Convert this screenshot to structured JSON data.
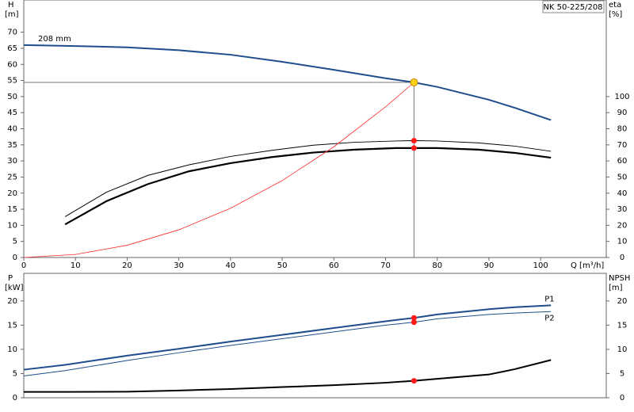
{
  "chart_data": [
    {
      "type": "line",
      "title": "NK 50-225/208",
      "y_label": "H",
      "y_unit": "[m]",
      "y2_label": "eta",
      "y2_unit": "[%]",
      "x_label": "Q [m³/h]",
      "xlim": [
        0,
        112.7
      ],
      "xticks": [
        0,
        10,
        20,
        30,
        40,
        50,
        60,
        70,
        80,
        90,
        100
      ],
      "ylim": [
        0,
        80
      ],
      "yticks": [
        0,
        5,
        10,
        15,
        20,
        25,
        30,
        35,
        40,
        45,
        50,
        55,
        60,
        65,
        70
      ],
      "y2lim": [
        0,
        160
      ],
      "y2ticks": [
        0,
        10,
        20,
        30,
        40,
        50,
        60,
        70,
        80,
        90,
        100
      ],
      "operating_point": {
        "x": 75.5,
        "y": 54.4
      },
      "series": [
        {
          "name": "208 mm",
          "color": "#1f4e8c",
          "line_width": 2,
          "x": [
            0,
            10,
            20,
            30,
            40,
            50,
            60,
            70,
            75.5,
            80,
            90,
            95,
            102
          ],
          "values": [
            66,
            65.7,
            65.3,
            64.4,
            63,
            60.8,
            58.3,
            55.7,
            54.4,
            53,
            49,
            46.5,
            42.7
          ]
        },
        {
          "color": "#000000",
          "line_width": 1,
          "axis": "y2",
          "marker": true,
          "x": [
            8,
            16,
            24,
            32,
            40,
            48,
            56,
            64,
            72,
            75.5,
            80,
            88,
            95,
            102
          ],
          "values": [
            25.4,
            40.6,
            51,
            57.6,
            62.8,
            66.6,
            69.8,
            71.6,
            72.4,
            72.6,
            72.4,
            71.2,
            69.2,
            66
          ]
        },
        {
          "color": "#000000",
          "line_width": 2.2,
          "axis": "y2",
          "marker": true,
          "x": [
            8,
            16,
            24,
            32,
            40,
            48,
            56,
            64,
            72,
            75.5,
            80,
            88,
            95,
            102
          ],
          "values": [
            20.6,
            35,
            45.6,
            53.6,
            58.6,
            62.4,
            65.2,
            67,
            68,
            68,
            68,
            67,
            65,
            62
          ]
        },
        {
          "color": "#ff2a2a",
          "line_width": 0.8,
          "x": [
            0,
            10,
            20,
            30,
            40,
            50,
            60,
            70,
            75.5
          ],
          "values": [
            0,
            0.95,
            3.8,
            8.6,
            15.3,
            23.9,
            34.4,
            46.8,
            54.4
          ]
        }
      ]
    },
    {
      "type": "line",
      "y_label": "P",
      "y_unit": "[kW]",
      "y2_label": "NPSH",
      "y2_unit": "[m]",
      "xlim": [
        0,
        112.7
      ],
      "ylim": [
        0,
        25.7
      ],
      "yticks": [
        0,
        5,
        10,
        15,
        20
      ],
      "y2lim": [
        0,
        25.7
      ],
      "y2ticks": [
        0,
        5,
        10,
        15,
        20
      ],
      "operating_point": {
        "x": 75.5
      },
      "series": [
        {
          "name": "P1",
          "color": "#1f4e8c",
          "line_width": 2,
          "marker": true,
          "x": [
            0,
            8,
            20,
            30,
            40,
            50,
            60,
            70,
            75.5,
            80,
            90,
            95,
            102
          ],
          "values": [
            5.8,
            6.8,
            8.7,
            10.1,
            11.6,
            13,
            14.4,
            15.8,
            16.5,
            17.2,
            18.3,
            18.7,
            19.1
          ]
        },
        {
          "name": "P2",
          "color": "#1f4e8c",
          "line_width": 1,
          "marker": true,
          "x": [
            0,
            8,
            20,
            30,
            40,
            50,
            60,
            70,
            75.5,
            80,
            90,
            95,
            102
          ],
          "values": [
            4.5,
            5.6,
            7.7,
            9.3,
            10.8,
            12.2,
            13.6,
            15,
            15.6,
            16.3,
            17.2,
            17.5,
            17.8
          ]
        },
        {
          "color": "#000000",
          "line_width": 2,
          "axis": "y2",
          "marker": true,
          "x": [
            0,
            8,
            20,
            30,
            40,
            50,
            60,
            70,
            75.5,
            80,
            90,
            95,
            102
          ],
          "values": [
            1.2,
            1.2,
            1.25,
            1.5,
            1.8,
            2.2,
            2.6,
            3.1,
            3.5,
            3.9,
            4.8,
            5.9,
            7.8
          ]
        }
      ]
    }
  ]
}
